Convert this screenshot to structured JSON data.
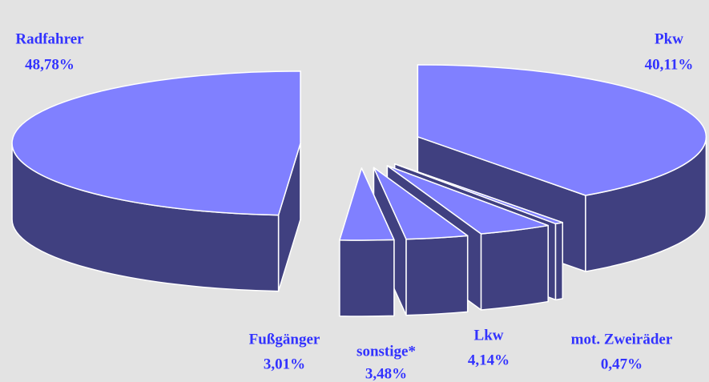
{
  "chart_data": {
    "type": "pie3d",
    "categories": [
      "Pkw",
      "mot. Zweiräder",
      "Lkw",
      "sonstige*",
      "Fußgänger",
      "Radfahrer"
    ],
    "values": [
      40.11,
      0.47,
      4.14,
      3.48,
      3.01,
      48.78
    ],
    "value_labels": [
      "40,11%",
      "0,47%",
      "4,14%",
      "3,48%",
      "3,01%",
      "48,78%"
    ],
    "color": "#8080ff",
    "side_color": "#404080",
    "label_color": "#3333ff"
  }
}
